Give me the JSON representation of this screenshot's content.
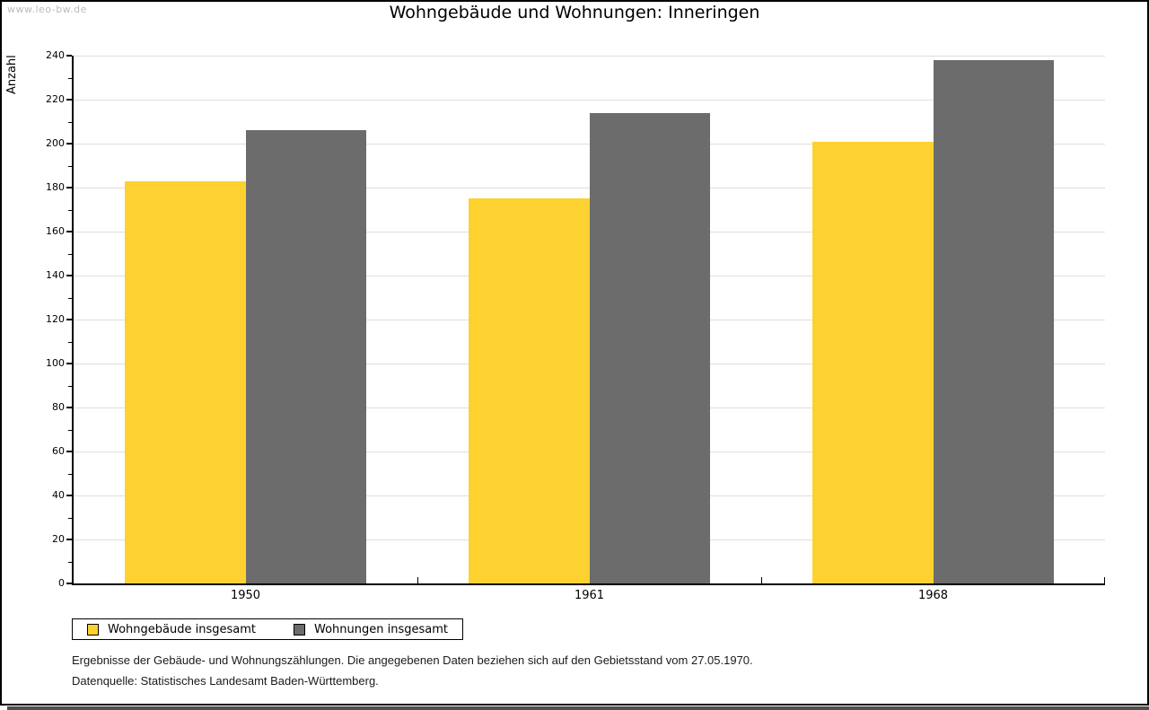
{
  "watermark": "www.leo-bw.de",
  "title": "Wohngebäude und Wohnungen: Inneringen",
  "chart_data": {
    "type": "bar",
    "title": "Wohngebäude und Wohnungen: Inneringen",
    "xlabel": "",
    "ylabel": "Anzahl",
    "categories": [
      "1950",
      "1961",
      "1968"
    ],
    "series": [
      {
        "name": "Wohngebäude insgesamt",
        "color": "#FDD230",
        "values": [
          183,
          175,
          201
        ]
      },
      {
        "name": "Wohnungen insgesamt",
        "color": "#6C6C6C",
        "values": [
          206,
          214,
          238
        ]
      }
    ],
    "ylim": [
      0,
      240
    ],
    "ytick_major": 20,
    "ytick_minor": 10,
    "grid": true,
    "legend_position": "bottom-left"
  },
  "legend": {
    "items": [
      {
        "label": "Wohngebäude insgesamt",
        "color": "#FDD230"
      },
      {
        "label": "Wohnungen insgesamt",
        "color": "#6C6C6C"
      }
    ]
  },
  "footnotes": {
    "line1": "Ergebnisse der Gebäude- und Wohnungszählungen. Die angegebenen Daten beziehen sich auf den Gebietsstand vom 27.05.1970.",
    "line2": "Datenquelle: Statistisches Landesamt Baden-Württemberg."
  },
  "colors": {
    "gridline": "#DEDEDE",
    "axis": "#000000",
    "watermark": "#BBBBBB",
    "background": "#FFFFFF",
    "bottom_strip": "#4E4E4E"
  }
}
